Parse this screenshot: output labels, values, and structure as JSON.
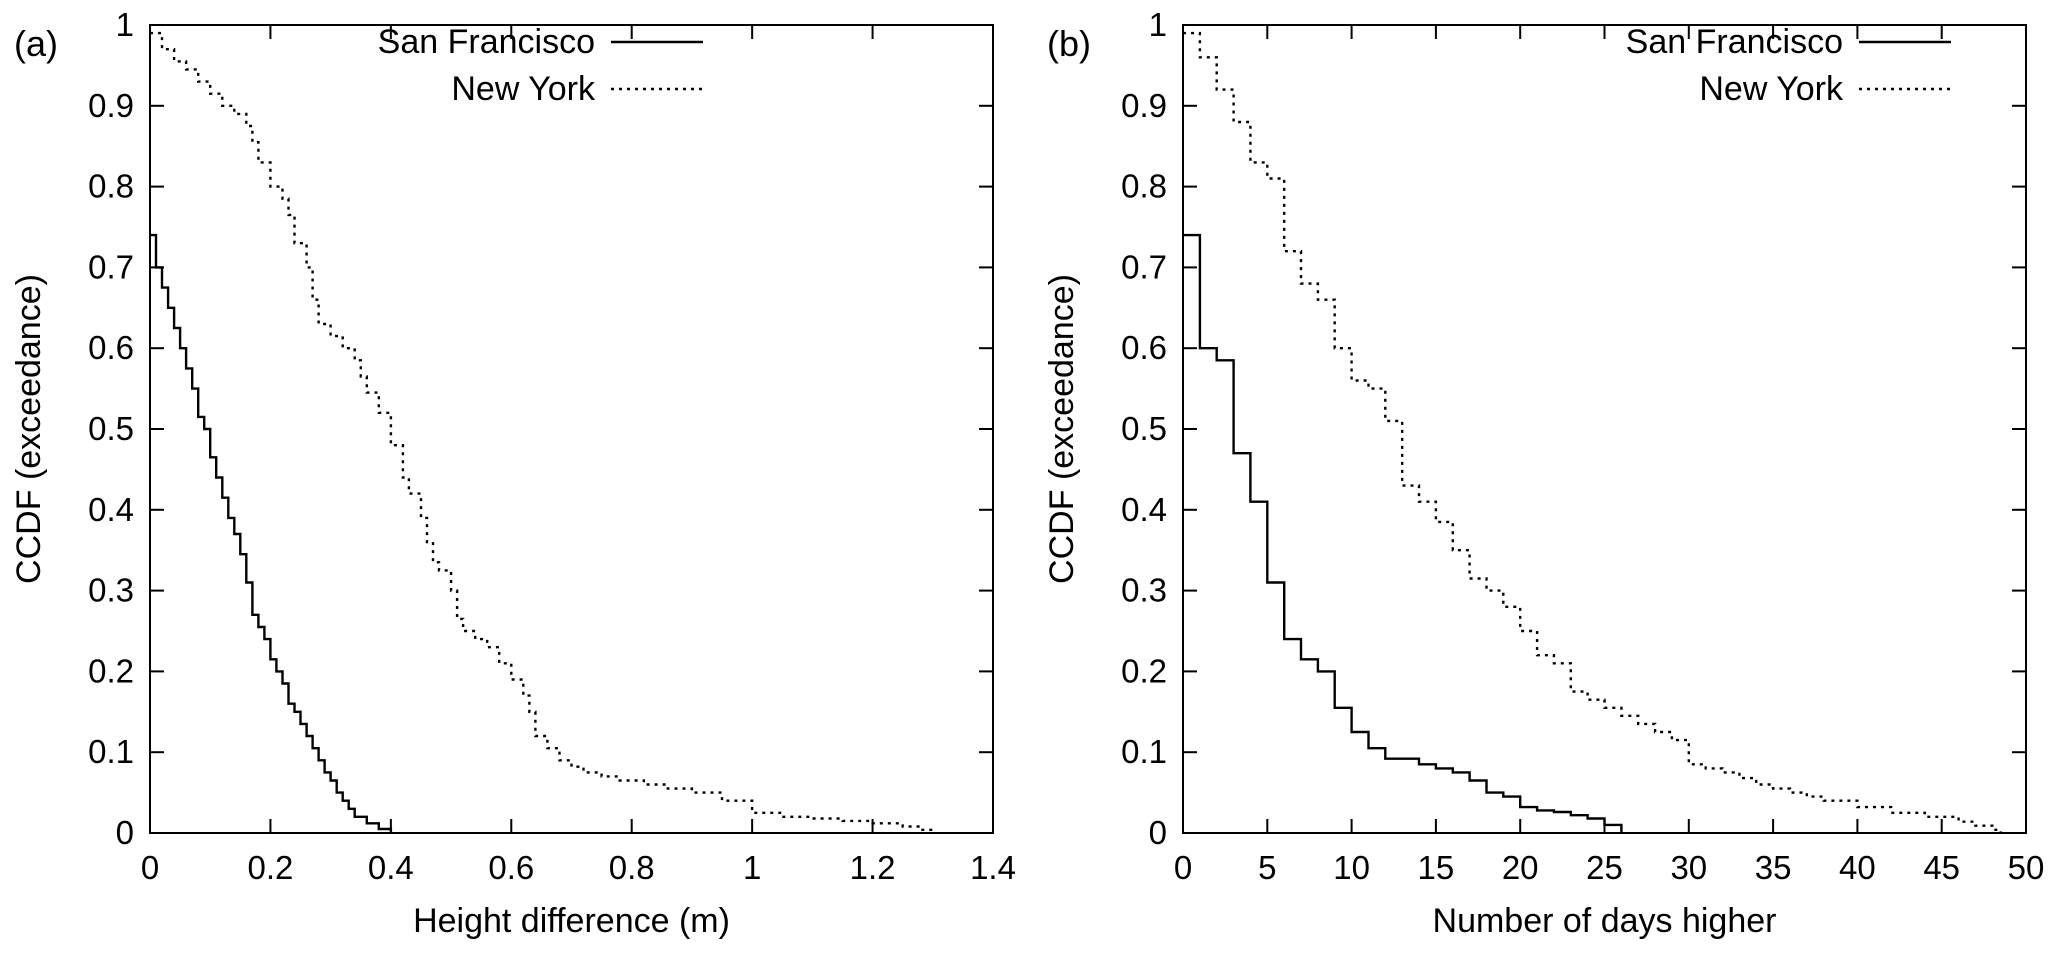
{
  "figure": {
    "background": "#ffffff",
    "line_color": "#000000",
    "text_color": "#000000"
  },
  "chart_data": [
    {
      "type": "line",
      "panel_label": "(a)",
      "title": "",
      "xlabel": "Height difference (m)",
      "ylabel": "CCDF (exceedance)",
      "xlim": [
        0,
        1.4
      ],
      "ylim": [
        0,
        1
      ],
      "grid": false,
      "legend_position": "top-right-inside",
      "legend_inset": 290,
      "xticks": [
        0,
        0.2,
        0.4,
        0.6,
        0.8,
        1,
        1.2,
        1.4
      ],
      "xtick_labels": [
        "0",
        "0.2",
        "0.4",
        "0.6",
        "0.8",
        "1",
        "1.2",
        "1.4"
      ],
      "yticks": [
        0,
        0.1,
        0.2,
        0.3,
        0.4,
        0.5,
        0.6,
        0.7,
        0.8,
        0.9,
        1
      ],
      "ytick_labels": [
        "0",
        "0.1",
        "0.2",
        "0.3",
        "0.4",
        "0.5",
        "0.6",
        "0.7",
        "0.8",
        "0.9",
        "1"
      ],
      "series": [
        {
          "name": "San Francisco",
          "style": "solid",
          "points": [
            [
              0,
              0.74
            ],
            [
              0.01,
              0.7
            ],
            [
              0.02,
              0.675
            ],
            [
              0.03,
              0.65
            ],
            [
              0.04,
              0.625
            ],
            [
              0.05,
              0.6
            ],
            [
              0.06,
              0.575
            ],
            [
              0.07,
              0.55
            ],
            [
              0.08,
              0.515
            ],
            [
              0.09,
              0.5
            ],
            [
              0.1,
              0.465
            ],
            [
              0.11,
              0.44
            ],
            [
              0.12,
              0.415
            ],
            [
              0.13,
              0.39
            ],
            [
              0.14,
              0.37
            ],
            [
              0.15,
              0.345
            ],
            [
              0.16,
              0.31
            ],
            [
              0.17,
              0.27
            ],
            [
              0.18,
              0.255
            ],
            [
              0.19,
              0.24
            ],
            [
              0.2,
              0.215
            ],
            [
              0.21,
              0.2
            ],
            [
              0.22,
              0.185
            ],
            [
              0.23,
              0.16
            ],
            [
              0.24,
              0.15
            ],
            [
              0.25,
              0.135
            ],
            [
              0.26,
              0.12
            ],
            [
              0.27,
              0.105
            ],
            [
              0.28,
              0.09
            ],
            [
              0.29,
              0.075
            ],
            [
              0.3,
              0.065
            ],
            [
              0.31,
              0.05
            ],
            [
              0.32,
              0.04
            ],
            [
              0.33,
              0.03
            ],
            [
              0.34,
              0.02
            ],
            [
              0.36,
              0.012
            ],
            [
              0.38,
              0.005
            ],
            [
              0.4,
              0
            ]
          ]
        },
        {
          "name": "New York",
          "style": "dotted",
          "points": [
            [
              0,
              0.99
            ],
            [
              0.02,
              0.97
            ],
            [
              0.04,
              0.955
            ],
            [
              0.06,
              0.945
            ],
            [
              0.08,
              0.93
            ],
            [
              0.1,
              0.915
            ],
            [
              0.12,
              0.9
            ],
            [
              0.14,
              0.89
            ],
            [
              0.16,
              0.875
            ],
            [
              0.17,
              0.855
            ],
            [
              0.18,
              0.83
            ],
            [
              0.2,
              0.8
            ],
            [
              0.22,
              0.785
            ],
            [
              0.23,
              0.765
            ],
            [
              0.24,
              0.73
            ],
            [
              0.26,
              0.7
            ],
            [
              0.27,
              0.66
            ],
            [
              0.28,
              0.63
            ],
            [
              0.3,
              0.615
            ],
            [
              0.32,
              0.6
            ],
            [
              0.34,
              0.585
            ],
            [
              0.35,
              0.565
            ],
            [
              0.36,
              0.545
            ],
            [
              0.38,
              0.52
            ],
            [
              0.4,
              0.48
            ],
            [
              0.42,
              0.44
            ],
            [
              0.43,
              0.42
            ],
            [
              0.45,
              0.39
            ],
            [
              0.46,
              0.36
            ],
            [
              0.47,
              0.335
            ],
            [
              0.48,
              0.325
            ],
            [
              0.5,
              0.3
            ],
            [
              0.51,
              0.265
            ],
            [
              0.52,
              0.25
            ],
            [
              0.54,
              0.24
            ],
            [
              0.56,
              0.23
            ],
            [
              0.58,
              0.21
            ],
            [
              0.6,
              0.19
            ],
            [
              0.62,
              0.17
            ],
            [
              0.63,
              0.15
            ],
            [
              0.64,
              0.12
            ],
            [
              0.66,
              0.105
            ],
            [
              0.68,
              0.09
            ],
            [
              0.7,
              0.082
            ],
            [
              0.72,
              0.075
            ],
            [
              0.75,
              0.07
            ],
            [
              0.78,
              0.065
            ],
            [
              0.82,
              0.06
            ],
            [
              0.86,
              0.055
            ],
            [
              0.9,
              0.05
            ],
            [
              0.95,
              0.04
            ],
            [
              1.0,
              0.025
            ],
            [
              1.05,
              0.02
            ],
            [
              1.1,
              0.018
            ],
            [
              1.15,
              0.015
            ],
            [
              1.2,
              0.012
            ],
            [
              1.25,
              0.008
            ],
            [
              1.28,
              0.004
            ],
            [
              1.3,
              0
            ]
          ]
        }
      ]
    },
    {
      "type": "line",
      "panel_label": "(b)",
      "title": "",
      "xlabel": "Number of days higher",
      "ylabel": "CCDF (exceedance)",
      "xlim": [
        0,
        50
      ],
      "ylim": [
        0,
        1
      ],
      "grid": false,
      "legend_position": "top-right-inside",
      "legend_inset": 75,
      "xticks": [
        0,
        5,
        10,
        15,
        20,
        25,
        30,
        35,
        40,
        45,
        50
      ],
      "xtick_labels": [
        "0",
        "5",
        "10",
        "15",
        "20",
        "25",
        "30",
        "35",
        "40",
        "45",
        "50"
      ],
      "yticks": [
        0,
        0.1,
        0.2,
        0.3,
        0.4,
        0.5,
        0.6,
        0.7,
        0.8,
        0.9,
        1
      ],
      "ytick_labels": [
        "0",
        "0.1",
        "0.2",
        "0.3",
        "0.4",
        "0.5",
        "0.6",
        "0.7",
        "0.8",
        "0.9",
        "1"
      ],
      "series": [
        {
          "name": "San Francisco",
          "style": "solid",
          "points": [
            [
              0,
              0.74
            ],
            [
              1,
              0.6
            ],
            [
              2,
              0.585
            ],
            [
              3,
              0.47
            ],
            [
              4,
              0.41
            ],
            [
              5,
              0.31
            ],
            [
              6,
              0.24
            ],
            [
              7,
              0.215
            ],
            [
              8,
              0.2
            ],
            [
              9,
              0.155
            ],
            [
              10,
              0.125
            ],
            [
              11,
              0.105
            ],
            [
              12,
              0.092
            ],
            [
              14,
              0.085
            ],
            [
              15,
              0.08
            ],
            [
              16,
              0.075
            ],
            [
              17,
              0.065
            ],
            [
              18,
              0.05
            ],
            [
              19,
              0.045
            ],
            [
              20,
              0.032
            ],
            [
              21,
              0.028
            ],
            [
              22,
              0.026
            ],
            [
              23,
              0.022
            ],
            [
              24,
              0.018
            ],
            [
              25,
              0.01
            ],
            [
              26,
              0
            ]
          ]
        },
        {
          "name": "New York",
          "style": "dotted",
          "points": [
            [
              0,
              0.99
            ],
            [
              1,
              0.96
            ],
            [
              2,
              0.92
            ],
            [
              3,
              0.88
            ],
            [
              4,
              0.83
            ],
            [
              5,
              0.81
            ],
            [
              6,
              0.72
            ],
            [
              7,
              0.68
            ],
            [
              8,
              0.66
            ],
            [
              9,
              0.6
            ],
            [
              10,
              0.56
            ],
            [
              11,
              0.55
            ],
            [
              12,
              0.51
            ],
            [
              13,
              0.43
            ],
            [
              14,
              0.41
            ],
            [
              15,
              0.385
            ],
            [
              16,
              0.35
            ],
            [
              17,
              0.315
            ],
            [
              18,
              0.3
            ],
            [
              19,
              0.28
            ],
            [
              20,
              0.25
            ],
            [
              21,
              0.22
            ],
            [
              22,
              0.21
            ],
            [
              23,
              0.175
            ],
            [
              24,
              0.165
            ],
            [
              25,
              0.155
            ],
            [
              26,
              0.145
            ],
            [
              27,
              0.135
            ],
            [
              28,
              0.125
            ],
            [
              29,
              0.115
            ],
            [
              30,
              0.085
            ],
            [
              31,
              0.08
            ],
            [
              32,
              0.075
            ],
            [
              33,
              0.068
            ],
            [
              34,
              0.06
            ],
            [
              35,
              0.055
            ],
            [
              36,
              0.05
            ],
            [
              37,
              0.045
            ],
            [
              38,
              0.04
            ],
            [
              40,
              0.032
            ],
            [
              42,
              0.025
            ],
            [
              44,
              0.02
            ],
            [
              46,
              0.014
            ],
            [
              47,
              0.009
            ],
            [
              48,
              0.004
            ],
            [
              48.5,
              0
            ]
          ]
        }
      ]
    }
  ]
}
